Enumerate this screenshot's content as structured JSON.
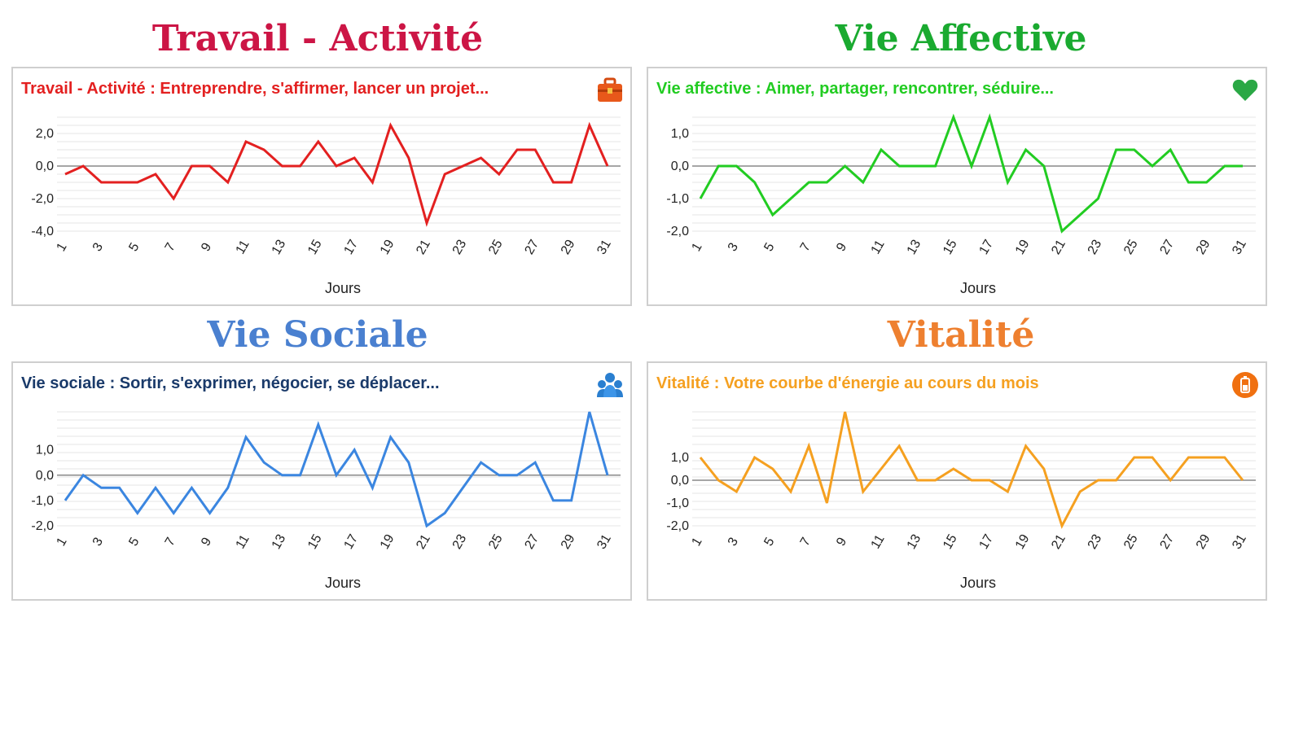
{
  "panels": [
    {
      "heading": "Travail - Activité",
      "subtitle": "Travail - Activité : Entreprendre, s'affirmer, lancer un projet...",
      "color": "#e32020",
      "heading_color": "#cc1545",
      "icon": "briefcase-icon",
      "chart_data": {
        "type": "line",
        "x": [
          1,
          2,
          3,
          4,
          5,
          6,
          7,
          8,
          9,
          10,
          11,
          12,
          13,
          14,
          15,
          16,
          17,
          18,
          19,
          20,
          21,
          22,
          23,
          24,
          25,
          26,
          27,
          28,
          29,
          30,
          31
        ],
        "x_ticks": [
          "1",
          "3",
          "5",
          "7",
          "9",
          "11",
          "13",
          "15",
          "17",
          "19",
          "21",
          "23",
          "25",
          "27",
          "29",
          "31"
        ],
        "y_ticks": [
          "2,0",
          "0,0",
          "-2,0",
          "-4,0"
        ],
        "y_tick_values": [
          2,
          0,
          -2,
          -4
        ],
        "ylim": [
          -4,
          3
        ],
        "xlabel": "Jours",
        "values": [
          -0.5,
          0,
          -1,
          -1,
          -1,
          -0.5,
          -2,
          0,
          0,
          -1,
          1.5,
          1,
          0,
          0,
          1.5,
          0,
          0.5,
          -1,
          2.5,
          0.5,
          -3.5,
          -0.5,
          0,
          0.5,
          -0.5,
          1,
          1,
          -1,
          -1,
          2.5,
          0
        ]
      }
    },
    {
      "heading": "Vie Affective",
      "subtitle": "Vie affective : Aimer, partager, rencontrer, séduire...",
      "color": "#22cc22",
      "heading_color": "#1aaa30",
      "icon": "heart-icon",
      "chart_data": {
        "type": "line",
        "x": [
          1,
          2,
          3,
          4,
          5,
          6,
          7,
          8,
          9,
          10,
          11,
          12,
          13,
          14,
          15,
          16,
          17,
          18,
          19,
          20,
          21,
          22,
          23,
          24,
          25,
          26,
          27,
          28,
          29,
          30,
          31
        ],
        "x_ticks": [
          "1",
          "3",
          "5",
          "7",
          "9",
          "11",
          "13",
          "15",
          "17",
          "19",
          "21",
          "23",
          "25",
          "27",
          "29",
          "31"
        ],
        "y_ticks": [
          "1,0",
          "0,0",
          "-1,0",
          "-2,0"
        ],
        "y_tick_values": [
          1,
          0,
          -1,
          -2
        ],
        "ylim": [
          -2,
          1.5
        ],
        "xlabel": "Jours",
        "values": [
          -1,
          0,
          0,
          -0.5,
          -1.5,
          -1,
          -0.5,
          -0.5,
          0,
          -0.5,
          0.5,
          0,
          0,
          0,
          1.5,
          0,
          1.5,
          -0.5,
          0.5,
          0,
          -2,
          -1.5,
          -1,
          0.5,
          0.5,
          0,
          0.5,
          -0.5,
          -0.5,
          0,
          0
        ]
      }
    },
    {
      "heading": "Vie Sociale",
      "subtitle": "Vie sociale : Sortir, s'exprimer, négocier, se déplacer...",
      "color": "#3b86e0",
      "heading_color": "#4a80d0",
      "subtitle_color": "#1a3a6a",
      "icon": "people-icon",
      "chart_data": {
        "type": "line",
        "x": [
          1,
          2,
          3,
          4,
          5,
          6,
          7,
          8,
          9,
          10,
          11,
          12,
          13,
          14,
          15,
          16,
          17,
          18,
          19,
          20,
          21,
          22,
          23,
          24,
          25,
          26,
          27,
          28,
          29,
          30,
          31
        ],
        "x_ticks": [
          "1",
          "3",
          "5",
          "7",
          "9",
          "11",
          "13",
          "15",
          "17",
          "19",
          "21",
          "23",
          "25",
          "27",
          "29",
          "31"
        ],
        "y_ticks": [
          "1,0",
          "0,0",
          "-1,0",
          "-2,0"
        ],
        "y_tick_values": [
          1,
          0,
          -1,
          -2
        ],
        "ylim": [
          -2,
          2.5
        ],
        "xlabel": "Jours",
        "values": [
          -1,
          0,
          -0.5,
          -0.5,
          -1.5,
          -0.5,
          -1.5,
          -0.5,
          -1.5,
          -0.5,
          1.5,
          0.5,
          0,
          0,
          2,
          0,
          1,
          -0.5,
          1.5,
          0.5,
          -2,
          -1.5,
          -0.5,
          0.5,
          0,
          0,
          0.5,
          -1,
          -1,
          2.5,
          0
        ]
      }
    },
    {
      "heading": "Vitalité",
      "subtitle": "Vitalité : Votre courbe d'énergie au cours du mois",
      "color": "#f5a020",
      "heading_color": "#ee8030",
      "icon": "battery-icon",
      "chart_data": {
        "type": "line",
        "x": [
          1,
          2,
          3,
          4,
          5,
          6,
          7,
          8,
          9,
          10,
          11,
          12,
          13,
          14,
          15,
          16,
          17,
          18,
          19,
          20,
          21,
          22,
          23,
          24,
          25,
          26,
          27,
          28,
          29,
          30,
          31
        ],
        "x_ticks": [
          "1",
          "3",
          "5",
          "7",
          "9",
          "11",
          "13",
          "15",
          "17",
          "19",
          "21",
          "23",
          "25",
          "27",
          "29",
          "31"
        ],
        "y_ticks": [
          "1,0",
          "0,0",
          "-1,0",
          "-2,0"
        ],
        "y_tick_values": [
          1,
          0,
          -1,
          -2
        ],
        "ylim": [
          -2,
          3
        ],
        "xlabel": "Jours",
        "values": [
          1,
          0,
          -0.5,
          1,
          0.5,
          -0.5,
          1.5,
          -1,
          3,
          -0.5,
          0.5,
          1.5,
          0,
          0,
          0.5,
          0,
          0,
          -0.5,
          1.5,
          0.5,
          -2,
          -0.5,
          0,
          0,
          1,
          1,
          0,
          1,
          1,
          1,
          0
        ]
      }
    }
  ]
}
